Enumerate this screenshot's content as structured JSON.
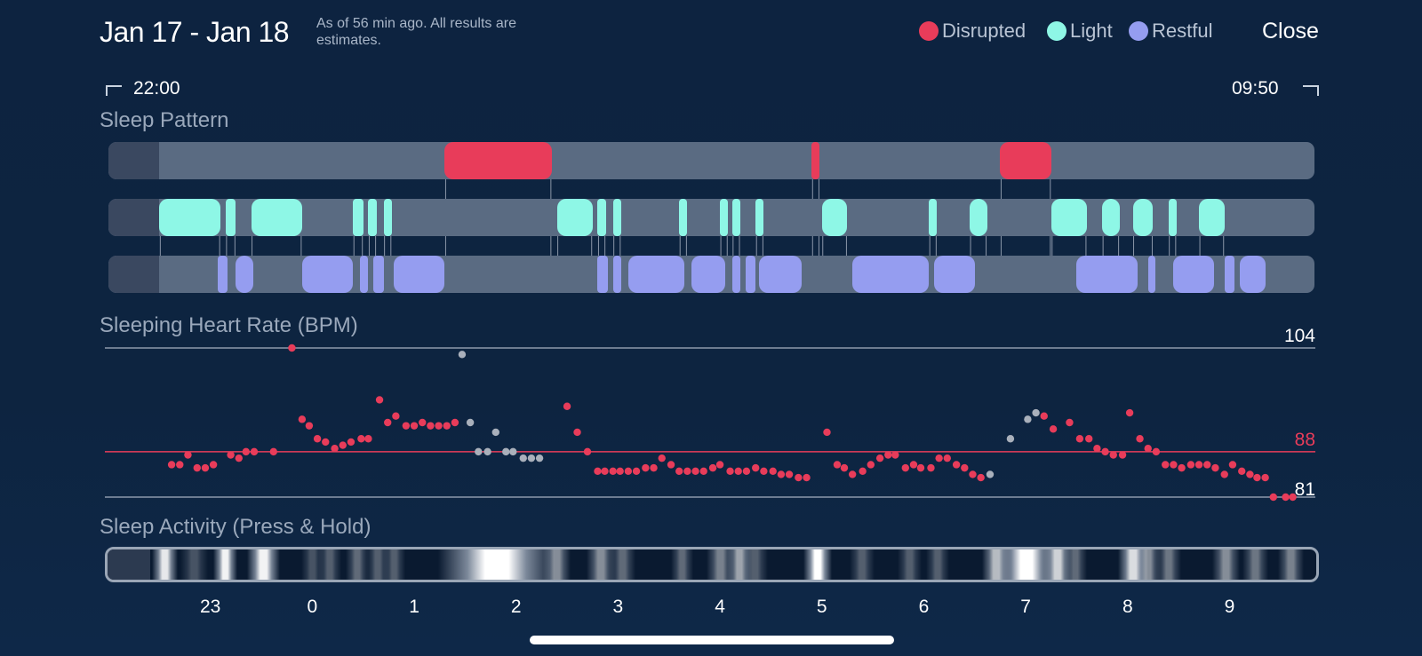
{
  "header": {
    "title": "Jan 17 - Jan 18",
    "note": "As of 56 min ago. All results are estimates.",
    "close_label": "Close"
  },
  "legend": [
    {
      "label": "Disrupted",
      "color": "#e83c5a"
    },
    {
      "label": "Light",
      "color": "#8ef7e6"
    },
    {
      "label": "Restful",
      "color": "#959df0"
    }
  ],
  "time_range": {
    "start": "22:00",
    "end": "09:50"
  },
  "sleep_pattern": {
    "title": "Sleep Pattern",
    "colors": {
      "disrupted": "#e83c5a",
      "light": "#8ef7e6",
      "restful": "#959df0",
      "track": "#5a6b82"
    },
    "disrupted": [
      [
        3.3,
        4.35
      ],
      [
        6.9,
        6.98
      ],
      [
        8.75,
        9.25
      ]
    ],
    "light": [
      [
        0.5,
        1.1
      ],
      [
        1.15,
        1.25
      ],
      [
        1.4,
        1.9
      ],
      [
        2.4,
        2.5
      ],
      [
        2.55,
        2.63
      ],
      [
        2.7,
        2.78
      ],
      [
        4.4,
        4.75
      ],
      [
        4.8,
        4.88
      ],
      [
        4.95,
        5.03
      ],
      [
        5.6,
        5.68
      ],
      [
        6.0,
        6.08
      ],
      [
        6.12,
        6.2
      ],
      [
        6.35,
        6.43
      ],
      [
        7.0,
        7.25
      ],
      [
        8.05,
        8.13
      ],
      [
        8.45,
        8.62
      ],
      [
        9.25,
        9.6
      ],
      [
        9.75,
        9.92
      ],
      [
        10.05,
        10.25
      ],
      [
        10.4,
        10.48
      ],
      [
        10.7,
        10.95
      ]
    ],
    "restful": [
      [
        1.07,
        1.17
      ],
      [
        1.25,
        1.42
      ],
      [
        1.9,
        2.4
      ],
      [
        2.47,
        2.55
      ],
      [
        2.6,
        2.7
      ],
      [
        2.8,
        3.3
      ],
      [
        4.8,
        4.9
      ],
      [
        4.95,
        5.03
      ],
      [
        5.1,
        5.65
      ],
      [
        5.72,
        6.05
      ],
      [
        6.12,
        6.2
      ],
      [
        6.25,
        6.35
      ],
      [
        6.38,
        6.8
      ],
      [
        7.3,
        8.05
      ],
      [
        8.1,
        8.5
      ],
      [
        9.5,
        10.1
      ],
      [
        10.2,
        10.27
      ],
      [
        10.45,
        10.85
      ],
      [
        10.95,
        11.05
      ],
      [
        11.1,
        11.35
      ]
    ]
  },
  "heart_rate": {
    "title": "Sleeping Heart Rate (BPM)",
    "max": 104,
    "avg": 88,
    "min": 81,
    "line_colors": {
      "max": "#8d99ab",
      "avg": "#e83c5a",
      "min": "#8d99ab"
    },
    "points": [
      [
        0.62,
        86,
        "r"
      ],
      [
        0.7,
        86,
        "r"
      ],
      [
        0.78,
        87.5,
        "r"
      ],
      [
        0.87,
        85.5,
        "r"
      ],
      [
        0.95,
        85.5,
        "r"
      ],
      [
        1.03,
        86,
        "r"
      ],
      [
        1.2,
        87.5,
        "r"
      ],
      [
        1.28,
        87,
        "r"
      ],
      [
        1.35,
        88,
        "r"
      ],
      [
        1.43,
        88,
        "r"
      ],
      [
        1.62,
        88,
        "r"
      ],
      [
        1.8,
        104,
        "r"
      ],
      [
        1.9,
        93,
        "r"
      ],
      [
        1.97,
        92,
        "r"
      ],
      [
        2.05,
        90,
        "r"
      ],
      [
        2.13,
        89.5,
        "r"
      ],
      [
        2.22,
        88.5,
        "r"
      ],
      [
        2.3,
        89,
        "r"
      ],
      [
        2.38,
        89.5,
        "r"
      ],
      [
        2.48,
        90,
        "r"
      ],
      [
        2.55,
        90,
        "r"
      ],
      [
        2.66,
        96,
        "r"
      ],
      [
        2.74,
        92.5,
        "r"
      ],
      [
        2.82,
        93.5,
        "r"
      ],
      [
        2.92,
        92,
        "r"
      ],
      [
        3.0,
        92,
        "r"
      ],
      [
        3.08,
        92.5,
        "r"
      ],
      [
        3.16,
        92,
        "r"
      ],
      [
        3.24,
        92,
        "r"
      ],
      [
        3.32,
        92,
        "r"
      ],
      [
        3.4,
        92.5,
        "r"
      ],
      [
        3.47,
        103,
        "g"
      ],
      [
        3.55,
        92.5,
        "g"
      ],
      [
        3.63,
        88,
        "g"
      ],
      [
        3.72,
        88,
        "g"
      ],
      [
        3.8,
        91,
        "g"
      ],
      [
        3.9,
        88,
        "g"
      ],
      [
        3.97,
        88,
        "g"
      ],
      [
        4.07,
        87,
        "g"
      ],
      [
        4.15,
        87,
        "g"
      ],
      [
        4.23,
        87,
        "g"
      ],
      [
        4.5,
        95,
        "r"
      ],
      [
        4.6,
        91,
        "r"
      ],
      [
        4.7,
        88,
        "r"
      ],
      [
        4.8,
        85,
        "r"
      ],
      [
        4.87,
        85,
        "r"
      ],
      [
        4.95,
        85,
        "r"
      ],
      [
        5.02,
        85,
        "r"
      ],
      [
        5.1,
        85,
        "r"
      ],
      [
        5.18,
        85,
        "r"
      ],
      [
        5.27,
        85.5,
        "r"
      ],
      [
        5.35,
        85.5,
        "r"
      ],
      [
        5.43,
        87,
        "r"
      ],
      [
        5.52,
        86,
        "r"
      ],
      [
        5.6,
        85,
        "r"
      ],
      [
        5.68,
        85,
        "r"
      ],
      [
        5.76,
        85,
        "r"
      ],
      [
        5.84,
        85,
        "r"
      ],
      [
        5.93,
        85.5,
        "r"
      ],
      [
        6.0,
        86,
        "r"
      ],
      [
        6.1,
        85,
        "r"
      ],
      [
        6.18,
        85,
        "r"
      ],
      [
        6.26,
        85,
        "r"
      ],
      [
        6.35,
        85.5,
        "r"
      ],
      [
        6.43,
        85,
        "r"
      ],
      [
        6.52,
        85,
        "r"
      ],
      [
        6.6,
        84.5,
        "r"
      ],
      [
        6.68,
        84.5,
        "r"
      ],
      [
        6.77,
        84,
        "r"
      ],
      [
        6.85,
        84,
        "r"
      ],
      [
        7.05,
        91,
        "r"
      ],
      [
        7.15,
        86,
        "r"
      ],
      [
        7.22,
        85.5,
        "r"
      ],
      [
        7.3,
        84.5,
        "r"
      ],
      [
        7.4,
        85,
        "r"
      ],
      [
        7.48,
        86,
        "r"
      ],
      [
        7.57,
        87,
        "r"
      ],
      [
        7.65,
        87.5,
        "r"
      ],
      [
        7.72,
        87.5,
        "r"
      ],
      [
        7.82,
        85.5,
        "r"
      ],
      [
        7.9,
        86,
        "r"
      ],
      [
        7.97,
        85.5,
        "r"
      ],
      [
        8.07,
        85.5,
        "r"
      ],
      [
        8.15,
        87,
        "r"
      ],
      [
        8.23,
        87,
        "r"
      ],
      [
        8.32,
        86,
        "r"
      ],
      [
        8.4,
        85.5,
        "r"
      ],
      [
        8.48,
        84.5,
        "r"
      ],
      [
        8.56,
        84,
        "r"
      ],
      [
        8.65,
        84.5,
        "g"
      ],
      [
        8.85,
        90,
        "g"
      ],
      [
        9.02,
        93,
        "g"
      ],
      [
        9.1,
        94,
        "g"
      ],
      [
        9.18,
        93.5,
        "r"
      ],
      [
        9.27,
        91.5,
        "r"
      ],
      [
        9.43,
        92.5,
        "r"
      ],
      [
        9.53,
        90,
        "r"
      ],
      [
        9.62,
        90,
        "r"
      ],
      [
        9.7,
        88.5,
        "r"
      ],
      [
        9.78,
        88,
        "r"
      ],
      [
        9.86,
        87.5,
        "r"
      ],
      [
        9.95,
        87.5,
        "r"
      ],
      [
        10.02,
        94,
        "r"
      ],
      [
        10.12,
        90,
        "r"
      ],
      [
        10.2,
        88.5,
        "r"
      ],
      [
        10.28,
        88,
        "r"
      ],
      [
        10.37,
        86,
        "r"
      ],
      [
        10.45,
        86,
        "r"
      ],
      [
        10.53,
        85.5,
        "r"
      ],
      [
        10.62,
        86,
        "r"
      ],
      [
        10.7,
        86,
        "r"
      ],
      [
        10.78,
        86,
        "r"
      ],
      [
        10.86,
        85.5,
        "r"
      ],
      [
        10.95,
        84.5,
        "r"
      ],
      [
        11.03,
        86,
        "r"
      ],
      [
        11.12,
        85,
        "r"
      ],
      [
        11.2,
        84.5,
        "r"
      ],
      [
        11.27,
        84,
        "r"
      ],
      [
        11.35,
        84,
        "r"
      ],
      [
        11.43,
        81,
        "r"
      ],
      [
        11.55,
        81,
        "r"
      ],
      [
        11.62,
        81,
        "r"
      ]
    ],
    "colors": {
      "r": "#e83c5a",
      "g": "#a9b0bb"
    }
  },
  "sleep_activity": {
    "title": "Sleep Activity (Press & Hold)",
    "highlights": [
      [
        0.52,
        0.6,
        0.9
      ],
      [
        0.8,
        0.9,
        0.25
      ],
      [
        1.12,
        1.18,
        0.95
      ],
      [
        1.45,
        1.6,
        0.95
      ],
      [
        1.98,
        2.03,
        0.25
      ],
      [
        2.15,
        2.2,
        0.3
      ],
      [
        2.42,
        2.47,
        0.35
      ],
      [
        2.62,
        2.67,
        0.3
      ],
      [
        2.78,
        2.83,
        0.3
      ],
      [
        3.32,
        4.3,
        1.0
      ],
      [
        4.35,
        4.45,
        0.5
      ],
      [
        4.78,
        4.88,
        0.5
      ],
      [
        5.0,
        5.08,
        0.35
      ],
      [
        5.6,
        5.65,
        0.35
      ],
      [
        5.95,
        6.05,
        0.45
      ],
      [
        6.15,
        6.22,
        0.6
      ],
      [
        6.3,
        6.38,
        0.3
      ],
      [
        6.9,
        7.0,
        1.0
      ],
      [
        7.35,
        7.42,
        0.3
      ],
      [
        7.82,
        7.88,
        0.3
      ],
      [
        8.1,
        8.15,
        0.3
      ],
      [
        8.65,
        8.75,
        0.7
      ],
      [
        8.8,
        9.2,
        1.0
      ],
      [
        9.25,
        9.35,
        0.8
      ],
      [
        9.45,
        9.5,
        0.35
      ],
      [
        9.98,
        10.1,
        0.85
      ],
      [
        10.15,
        10.22,
        0.5
      ],
      [
        10.35,
        10.42,
        0.4
      ],
      [
        10.9,
        11.0,
        0.5
      ],
      [
        11.2,
        11.28,
        0.4
      ],
      [
        11.55,
        11.62,
        0.45
      ]
    ],
    "axis_labels": [
      "23",
      "0",
      "1",
      "2",
      "3",
      "4",
      "5",
      "6",
      "7",
      "8",
      "9"
    ]
  }
}
